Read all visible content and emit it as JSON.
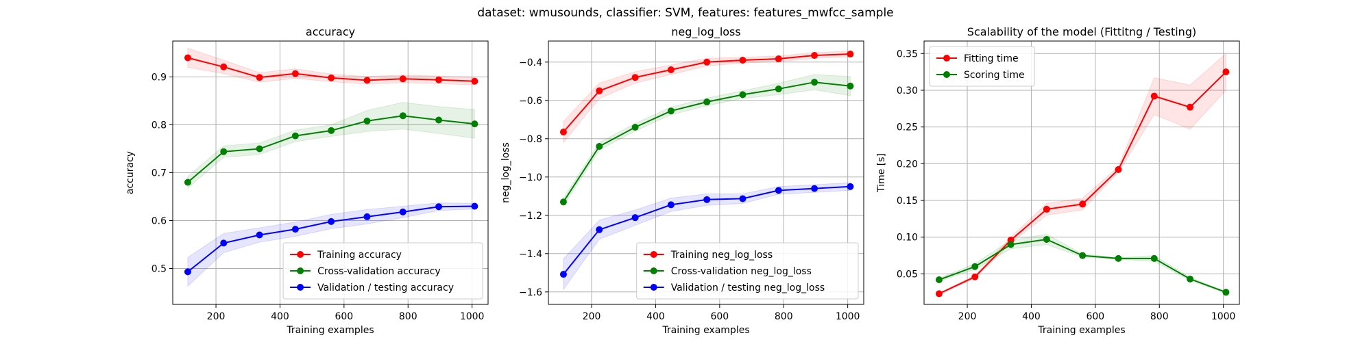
{
  "figure": {
    "suptitle": "dataset: wmusounds, classifier: SVM, features: features_mwfcc_sample"
  },
  "chart_data": [
    {
      "type": "line",
      "title": "accuracy",
      "xlabel": "Training examples",
      "ylabel": "accuracy",
      "xlim": [
        65,
        1050
      ],
      "ylim": [
        0.425,
        0.975
      ],
      "xticks": [
        200,
        400,
        600,
        800,
        1000
      ],
      "yticks": [
        0.5,
        0.6,
        0.7,
        0.8,
        0.9
      ],
      "ytick_decimals": 1,
      "grid": true,
      "legend_position": "lower right",
      "x": [
        112,
        224,
        336,
        448,
        560,
        672,
        784,
        896,
        1008
      ],
      "series": [
        {
          "name": "Training accuracy",
          "color": "#ff0000",
          "values": [
            0.94,
            0.921,
            0.899,
            0.907,
            0.898,
            0.893,
            0.896,
            0.894,
            0.891
          ],
          "std": [
            0.02,
            0.014,
            0.01,
            0.01,
            0.008,
            0.008,
            0.008,
            0.008,
            0.008
          ]
        },
        {
          "name": "Cross-validation accuracy",
          "color": "#008000",
          "values": [
            0.68,
            0.744,
            0.75,
            0.777,
            0.788,
            0.808,
            0.819,
            0.81,
            0.802
          ],
          "std": [
            0.012,
            0.012,
            0.012,
            0.012,
            0.012,
            0.022,
            0.028,
            0.028,
            0.03
          ]
        },
        {
          "name": "Validation / testing accuracy",
          "color": "#0000ff",
          "values": [
            0.493,
            0.553,
            0.57,
            0.582,
            0.598,
            0.608,
            0.618,
            0.629,
            0.63
          ],
          "std": [
            0.03,
            0.02,
            0.015,
            0.015,
            0.015,
            0.015,
            0.012,
            0.008,
            0.006
          ]
        }
      ]
    },
    {
      "type": "line",
      "title": "neg_log_loss",
      "xlabel": "Training examples",
      "ylabel": "neg_log_loss",
      "xlim": [
        65,
        1050
      ],
      "ylim": [
        -1.665,
        -0.29
      ],
      "xticks": [
        200,
        400,
        600,
        800,
        1000
      ],
      "yticks": [
        -1.6,
        -1.4,
        -1.2,
        -1.0,
        -0.8,
        -0.6,
        -0.4
      ],
      "ytick_decimals": 1,
      "grid": true,
      "legend_position": "lower right",
      "x": [
        112,
        224,
        336,
        448,
        560,
        672,
        784,
        896,
        1008
      ],
      "series": [
        {
          "name": "Training neg_log_loss",
          "color": "#ff0000",
          "values": [
            -0.765,
            -0.55,
            -0.48,
            -0.44,
            -0.4,
            -0.39,
            -0.383,
            -0.365,
            -0.358
          ],
          "std": [
            0.055,
            0.04,
            0.03,
            0.025,
            0.02,
            0.015,
            0.015,
            0.015,
            0.015
          ]
        },
        {
          "name": "Cross-validation neg_log_loss",
          "color": "#008000",
          "values": [
            -1.13,
            -0.84,
            -0.74,
            -0.655,
            -0.608,
            -0.57,
            -0.54,
            -0.505,
            -0.525
          ],
          "std": [
            0.02,
            0.02,
            0.02,
            0.02,
            0.02,
            0.02,
            0.03,
            0.04,
            0.05
          ]
        },
        {
          "name": "Validation / testing neg_log_loss",
          "color": "#0000ff",
          "values": [
            -1.508,
            -1.275,
            -1.212,
            -1.145,
            -1.118,
            -1.113,
            -1.07,
            -1.06,
            -1.05
          ],
          "std": [
            0.08,
            0.05,
            0.04,
            0.035,
            0.03,
            0.025,
            0.02,
            0.02,
            0.02
          ]
        }
      ]
    },
    {
      "type": "line",
      "title": "Scalability of the model (Fittitng / Testing)",
      "xlabel": "Training examples",
      "ylabel": "Time [s]",
      "xlim": [
        65,
        1050
      ],
      "ylim": [
        0.0085,
        0.367
      ],
      "xticks": [
        200,
        400,
        600,
        800,
        1000
      ],
      "yticks": [
        0.05,
        0.1,
        0.15,
        0.2,
        0.25,
        0.3,
        0.35
      ],
      "ytick_decimals": 2,
      "grid": true,
      "legend_position": "upper left",
      "x": [
        112,
        224,
        336,
        448,
        560,
        672,
        784,
        896,
        1008
      ],
      "series": [
        {
          "name": "Fitting time",
          "color": "#ff0000",
          "values": [
            0.023,
            0.046,
            0.096,
            0.138,
            0.145,
            0.192,
            0.292,
            0.277,
            0.325
          ],
          "std": [
            0.001,
            0.002,
            0.004,
            0.008,
            0.008,
            0.004,
            0.025,
            0.03,
            0.025
          ]
        },
        {
          "name": "Scoring time",
          "color": "#008000",
          "values": [
            0.042,
            0.06,
            0.09,
            0.097,
            0.075,
            0.071,
            0.071,
            0.043,
            0.025
          ],
          "std": [
            0.002,
            0.004,
            0.006,
            0.007,
            0.002,
            0.001,
            0.004,
            0.002,
            0.001
          ]
        }
      ]
    }
  ]
}
